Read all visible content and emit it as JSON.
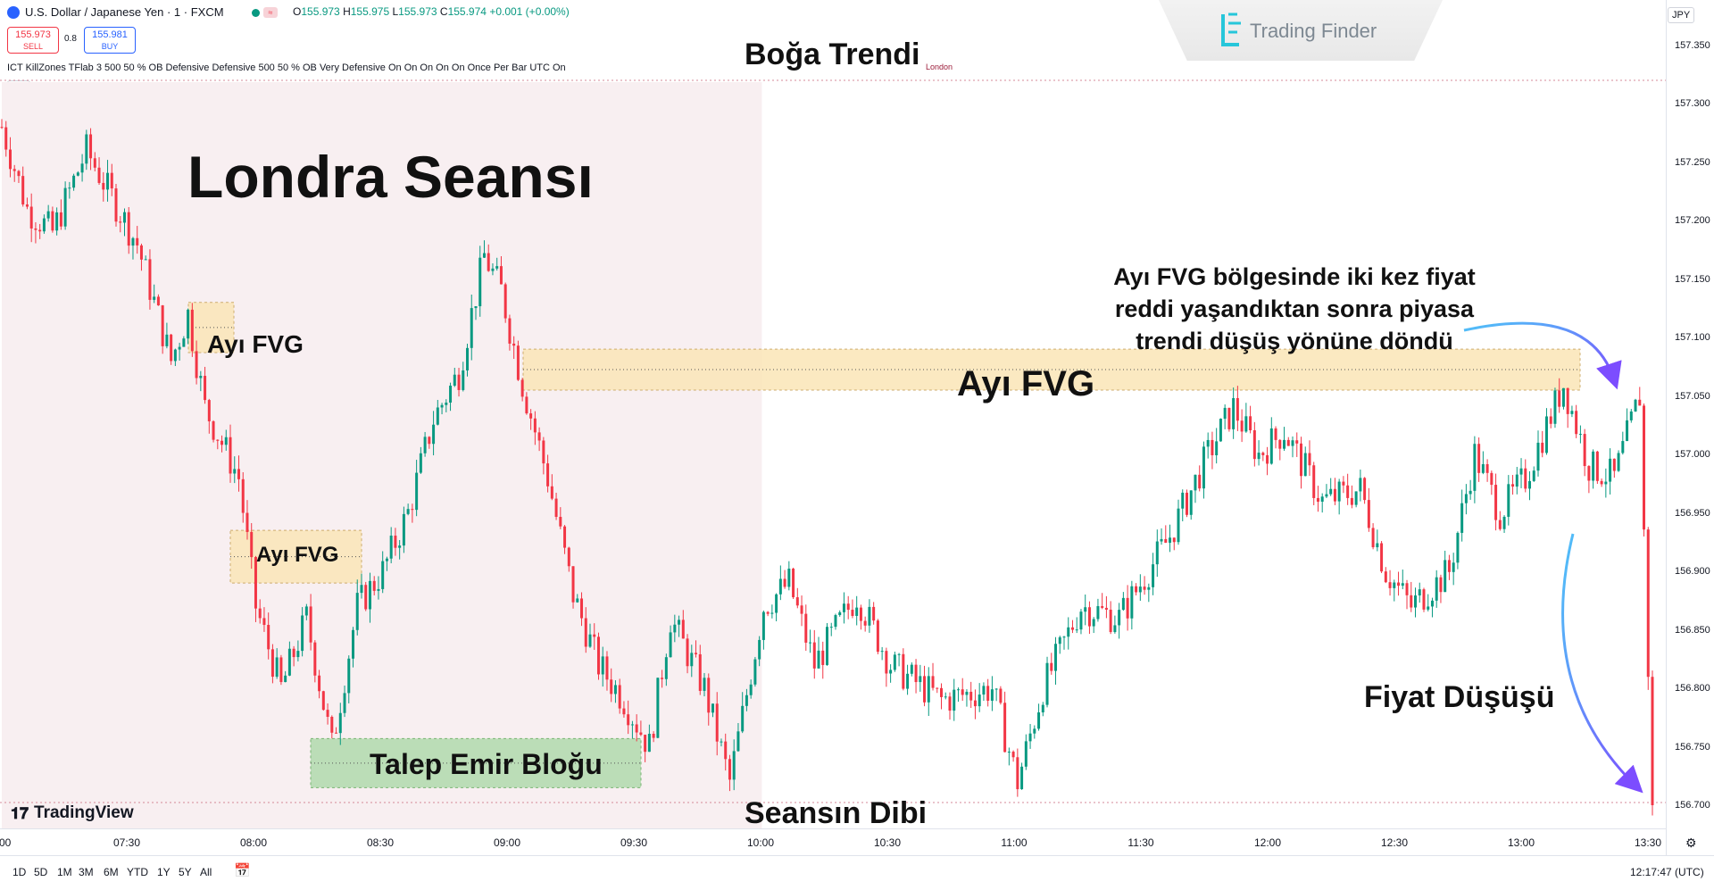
{
  "header": {
    "symbol_title": "U.S. Dollar / Japanese Yen · 1 · FXCM",
    "ohlc": [
      {
        "k": "O",
        "v": "155.973"
      },
      {
        "k": "H",
        "v": "155.975"
      },
      {
        "k": "L",
        "v": "155.973"
      },
      {
        "k": "C",
        "v": "155.974"
      },
      {
        "k": "",
        "v": "+0.001 (+0.00%)"
      }
    ],
    "sell_price": "155.973",
    "sell_label": "SELL",
    "spread": "0.8",
    "buy_price": "155.981",
    "buy_label": "BUY",
    "indicator": "ICT KillZones TFlab 3 500 50 % OB Defensive Defensive 500 50 % OB Very Defensive On On On On On Once Per Bar UTC On",
    "logo_text": "Trading Finder",
    "currency": "JPY",
    "collapse_icon": "chevron-up-icon"
  },
  "annotations": {
    "session_title": "Londra Seansı",
    "trend_label": "Boğa Trendi",
    "session_small_label": "London",
    "session_low_label": "Seansın Dibi",
    "fvg1_label": "Ayı FVG",
    "fvg2_label": "Ayı FVG",
    "fvg3_label": "Ayı FVG",
    "demand_label": "Talep Emir Bloğu",
    "note_lines": [
      "Ayı FVG bölgesinde iki kez fiyat",
      "reddi yaşandıktan sonra piyasa",
      "trendi düşüş yönüne döndü"
    ],
    "drop_label": "Fiyat Düşüşü"
  },
  "watermark": "TradingView",
  "timeframes": [
    "1D",
    "5D",
    "1M",
    "3M",
    "6M",
    "YTD",
    "1Y",
    "5Y",
    "All"
  ],
  "clock": "12:17:47 (UTC)",
  "colors": {
    "up": "#089981",
    "down": "#f23645",
    "session_bg": "#f8eff1",
    "fvg_fill": "#fbe7bb",
    "demand_fill": "#b5dcb1",
    "arrow": "#4fc3f7"
  },
  "chart_data": {
    "type": "candlestick",
    "title": "U.S. Dollar / Japanese Yen · 1 · FXCM",
    "x_ticks": [
      ":00",
      "07:30",
      "08:00",
      "08:30",
      "09:00",
      "09:30",
      "10:00",
      "10:30",
      "11:00",
      "11:30",
      "12:00",
      "12:30",
      "13:00",
      "13:30"
    ],
    "y_ticks": [
      157.35,
      157.3,
      157.25,
      157.2,
      157.15,
      157.1,
      157.05,
      157.0,
      156.95,
      156.9,
      156.85,
      156.8,
      156.75,
      156.7
    ],
    "ylim": [
      156.68,
      157.4
    ],
    "close_path": [
      {
        "t": "07:00",
        "v": 157.28
      },
      {
        "t": "07:06",
        "v": 157.21
      },
      {
        "t": "07:12",
        "v": 157.19
      },
      {
        "t": "07:20",
        "v": 157.26
      },
      {
        "t": "07:32",
        "v": 157.18
      },
      {
        "t": "07:40",
        "v": 157.08
      },
      {
        "t": "07:44",
        "v": 157.12
      },
      {
        "t": "07:48",
        "v": 157.04
      },
      {
        "t": "07:56",
        "v": 156.98
      },
      {
        "t": "08:00",
        "v": 156.87
      },
      {
        "t": "08:06",
        "v": 156.8
      },
      {
        "t": "08:12",
        "v": 156.86
      },
      {
        "t": "08:18",
        "v": 156.75
      },
      {
        "t": "08:24",
        "v": 156.87
      },
      {
        "t": "08:30",
        "v": 156.9
      },
      {
        "t": "08:36",
        "v": 156.95
      },
      {
        "t": "08:42",
        "v": 157.03
      },
      {
        "t": "08:48",
        "v": 157.07
      },
      {
        "t": "08:54",
        "v": 157.17
      },
      {
        "t": "08:58",
        "v": 157.14
      },
      {
        "t": "09:03",
        "v": 157.06
      },
      {
        "t": "09:09",
        "v": 156.98
      },
      {
        "t": "09:15",
        "v": 156.88
      },
      {
        "t": "09:21",
        "v": 156.82
      },
      {
        "t": "09:27",
        "v": 156.79
      },
      {
        "t": "09:33",
        "v": 156.75
      },
      {
        "t": "09:38",
        "v": 156.86
      },
      {
        "t": "09:46",
        "v": 156.8
      },
      {
        "t": "09:52",
        "v": 156.72
      },
      {
        "t": "10:00",
        "v": 156.87
      },
      {
        "t": "10:06",
        "v": 156.89
      },
      {
        "t": "10:12",
        "v": 156.82
      },
      {
        "t": "10:22",
        "v": 156.88
      },
      {
        "t": "10:30",
        "v": 156.82
      },
      {
        "t": "10:42",
        "v": 156.79
      },
      {
        "t": "10:54",
        "v": 156.8
      },
      {
        "t": "11:00",
        "v": 156.72
      },
      {
        "t": "11:06",
        "v": 156.8
      },
      {
        "t": "11:15",
        "v": 156.87
      },
      {
        "t": "11:24",
        "v": 156.86
      },
      {
        "t": "11:36",
        "v": 156.93
      },
      {
        "t": "11:45",
        "v": 157.0
      },
      {
        "t": "11:51",
        "v": 157.04
      },
      {
        "t": "11:57",
        "v": 157.0
      },
      {
        "t": "12:03",
        "v": 157.02
      },
      {
        "t": "12:12",
        "v": 156.96
      },
      {
        "t": "12:21",
        "v": 156.97
      },
      {
        "t": "12:27",
        "v": 156.9
      },
      {
        "t": "12:33",
        "v": 156.87
      },
      {
        "t": "12:42",
        "v": 156.9
      },
      {
        "t": "12:48",
        "v": 157.0
      },
      {
        "t": "12:54",
        "v": 156.95
      },
      {
        "t": "13:00",
        "v": 156.98
      },
      {
        "t": "13:09",
        "v": 157.06
      },
      {
        "t": "13:15",
        "v": 156.99
      },
      {
        "t": "13:21",
        "v": 156.98
      },
      {
        "t": "13:27",
        "v": 157.05
      },
      {
        "t": "13:30",
        "v": 156.7
      }
    ],
    "zones": [
      {
        "label": "Ayı FVG",
        "type": "bearish_fvg",
        "y1": 157.087,
        "y2": 157.13
      },
      {
        "label": "Ayı FVG",
        "type": "bearish_fvg",
        "y1": 156.89,
        "y2": 156.935
      },
      {
        "label": "Ayı FVG",
        "type": "bearish_fvg",
        "y1": 157.055,
        "y2": 157.09
      },
      {
        "label": "Talep Emir Bloğu",
        "type": "demand_order_block",
        "y1": 156.715,
        "y2": 156.757
      }
    ],
    "session": {
      "name": "London",
      "start": "07:00",
      "end": "10:00"
    },
    "grid": false,
    "legend": "none"
  }
}
